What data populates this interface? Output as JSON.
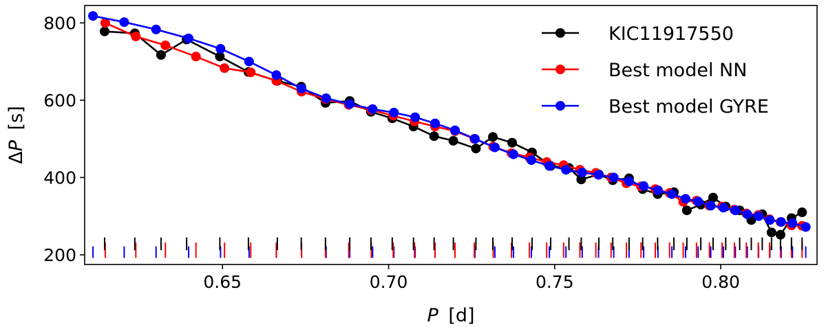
{
  "chart_data": {
    "type": "line",
    "xlabel_symbol": "P",
    "xlabel_unit": "[d]",
    "ylabel_prefix": "Δ",
    "ylabel_symbol": "P",
    "ylabel_unit": "[s]",
    "xlim": [
      0.6085,
      0.829
    ],
    "ylim": [
      175,
      845
    ],
    "xticks": [
      0.65,
      0.7,
      0.75,
      0.8
    ],
    "xtick_labels": [
      "0.65",
      "0.70",
      "0.75",
      "0.80"
    ],
    "yticks": [
      200,
      400,
      600,
      800
    ],
    "ytick_labels": [
      "200",
      "400",
      "600",
      "800"
    ],
    "legend_position": "top-right",
    "series": [
      {
        "name": "KIC11917550",
        "color": "#000000",
        "x": [
          0.6145,
          0.6236,
          0.6315,
          0.6392,
          0.6492,
          0.6578,
          0.6665,
          0.6737,
          0.681,
          0.6883,
          0.6947,
          0.7011,
          0.7075,
          0.7137,
          0.7195,
          0.7263,
          0.7314,
          0.7372,
          0.7432,
          0.7488,
          0.7543,
          0.758,
          0.7633,
          0.7675,
          0.7724,
          0.7765,
          0.781,
          0.7859,
          0.7898,
          0.794,
          0.7977,
          0.8015,
          0.8057,
          0.8092,
          0.8125,
          0.8153,
          0.818,
          0.8213,
          0.8245
        ],
        "y": [
          778,
          773,
          717,
          757,
          713,
          673,
          650,
          635,
          593,
          598,
          570,
          553,
          532,
          507,
          495,
          475,
          505,
          490,
          465,
          430,
          425,
          395,
          408,
          393,
          398,
          370,
          357,
          362,
          315,
          330,
          348,
          325,
          315,
          290,
          305,
          258,
          252,
          295,
          310
        ]
      },
      {
        "name": "Best model NN",
        "color": "#ff0000",
        "x": [
          0.6147,
          0.6239,
          0.6328,
          0.642,
          0.6506,
          0.6585,
          0.6662,
          0.6738,
          0.681,
          0.688,
          0.6948,
          0.7014,
          0.7078,
          0.714,
          0.72,
          0.7258,
          0.7315,
          0.737,
          0.7424,
          0.7476,
          0.7527,
          0.7576,
          0.7624,
          0.767,
          0.7716,
          0.776,
          0.7803,
          0.7846,
          0.7887,
          0.7927,
          0.7966,
          0.8004,
          0.8041,
          0.8077,
          0.8113,
          0.8147,
          0.818,
          0.8213,
          0.8245
        ],
        "y": [
          800,
          765,
          742,
          713,
          683,
          672,
          650,
          622,
          603,
          588,
          575,
          560,
          545,
          532,
          520,
          500,
          480,
          463,
          452,
          440,
          432,
          420,
          412,
          400,
          385,
          377,
          370,
          360,
          337,
          340,
          327,
          325,
          317,
          307,
          303,
          292,
          285,
          276,
          275
        ]
      },
      {
        "name": "Best model GYRE",
        "color": "#0000ff",
        "x": [
          0.611,
          0.6204,
          0.63,
          0.6398,
          0.6494,
          0.658,
          0.6662,
          0.6738,
          0.6812,
          0.6883,
          0.6952,
          0.7016,
          0.708,
          0.714,
          0.72,
          0.726,
          0.732,
          0.7376,
          0.743,
          0.7484,
          0.7534,
          0.7583,
          0.7632,
          0.7678,
          0.7724,
          0.7768,
          0.7811,
          0.7853,
          0.7894,
          0.7932,
          0.797,
          0.8008,
          0.8044,
          0.808,
          0.8114,
          0.8148,
          0.8182,
          0.8216,
          0.8256
        ],
        "y": [
          818,
          802,
          783,
          760,
          733,
          700,
          665,
          630,
          605,
          590,
          577,
          568,
          556,
          540,
          522,
          500,
          478,
          460,
          445,
          430,
          420,
          413,
          407,
          400,
          390,
          378,
          367,
          357,
          345,
          338,
          327,
          322,
          315,
          305,
          300,
          290,
          285,
          282,
          272
        ]
      }
    ]
  }
}
